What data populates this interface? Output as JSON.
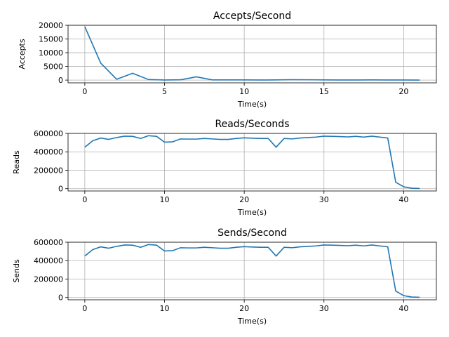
{
  "figure": {
    "background": "#ffffff",
    "line_color": "#1f77b4"
  },
  "chart_data": [
    {
      "type": "line",
      "title": "Accepts/Second",
      "xlabel": "Time(s)",
      "ylabel": "Accepts",
      "grid": true,
      "xlim": [
        -1.05,
        22.05
      ],
      "ylim": [
        -1000,
        20000
      ],
      "xticks": [
        0,
        5,
        10,
        15,
        20
      ],
      "yticks": [
        0,
        5000,
        10000,
        15000,
        20000
      ],
      "series": [
        {
          "x": [
            0,
            1,
            2,
            3,
            4,
            5,
            6,
            7,
            8,
            9,
            10,
            11,
            12,
            13,
            14,
            15,
            16,
            17,
            18,
            19,
            20,
            21
          ],
          "y": [
            19500,
            6200,
            300,
            2500,
            200,
            50,
            100,
            1200,
            80,
            60,
            60,
            40,
            60,
            150,
            120,
            60,
            40,
            50,
            60,
            40,
            30,
            20
          ]
        }
      ]
    },
    {
      "type": "line",
      "title": "Reads/Seconds",
      "xlabel": "Time(s)",
      "ylabel": "Reads",
      "grid": true,
      "xlim": [
        -2.1,
        44.1
      ],
      "ylim": [
        -25000,
        600000
      ],
      "xticks": [
        0,
        10,
        20,
        30,
        40
      ],
      "yticks": [
        0,
        200000,
        400000,
        600000
      ],
      "series": [
        {
          "x": [
            0,
            1,
            2,
            3,
            4,
            5,
            6,
            7,
            8,
            9,
            10,
            11,
            12,
            13,
            14,
            15,
            16,
            17,
            18,
            19,
            20,
            21,
            22,
            23,
            24,
            25,
            26,
            27,
            28,
            29,
            30,
            31,
            32,
            33,
            34,
            35,
            36,
            37,
            38,
            39,
            40,
            41,
            42
          ],
          "y": [
            450000,
            520000,
            550000,
            535000,
            555000,
            570000,
            568000,
            545000,
            575000,
            568000,
            505000,
            508000,
            540000,
            538000,
            538000,
            545000,
            540000,
            535000,
            535000,
            545000,
            552000,
            548000,
            545000,
            545000,
            450000,
            545000,
            540000,
            550000,
            555000,
            560000,
            570000,
            568000,
            565000,
            562000,
            568000,
            560000,
            570000,
            560000,
            550000,
            70000,
            20000,
            5000,
            2000
          ]
        }
      ]
    },
    {
      "type": "line",
      "title": "Sends/Second",
      "xlabel": "Time(s)",
      "ylabel": "Sends",
      "grid": true,
      "xlim": [
        -2.1,
        44.1
      ],
      "ylim": [
        -25000,
        600000
      ],
      "xticks": [
        0,
        10,
        20,
        30,
        40
      ],
      "yticks": [
        0,
        200000,
        400000,
        600000
      ],
      "series": [
        {
          "x": [
            0,
            1,
            2,
            3,
            4,
            5,
            6,
            7,
            8,
            9,
            10,
            11,
            12,
            13,
            14,
            15,
            16,
            17,
            18,
            19,
            20,
            21,
            22,
            23,
            24,
            25,
            26,
            27,
            28,
            29,
            30,
            31,
            32,
            33,
            34,
            35,
            36,
            37,
            38,
            39,
            40,
            41,
            42
          ],
          "y": [
            450000,
            520000,
            550000,
            535000,
            555000,
            570000,
            568000,
            545000,
            575000,
            568000,
            505000,
            508000,
            540000,
            538000,
            538000,
            545000,
            540000,
            535000,
            535000,
            545000,
            552000,
            548000,
            545000,
            545000,
            450000,
            545000,
            540000,
            550000,
            555000,
            560000,
            570000,
            568000,
            565000,
            562000,
            568000,
            560000,
            570000,
            560000,
            550000,
            70000,
            20000,
            5000,
            2000
          ]
        }
      ]
    }
  ]
}
